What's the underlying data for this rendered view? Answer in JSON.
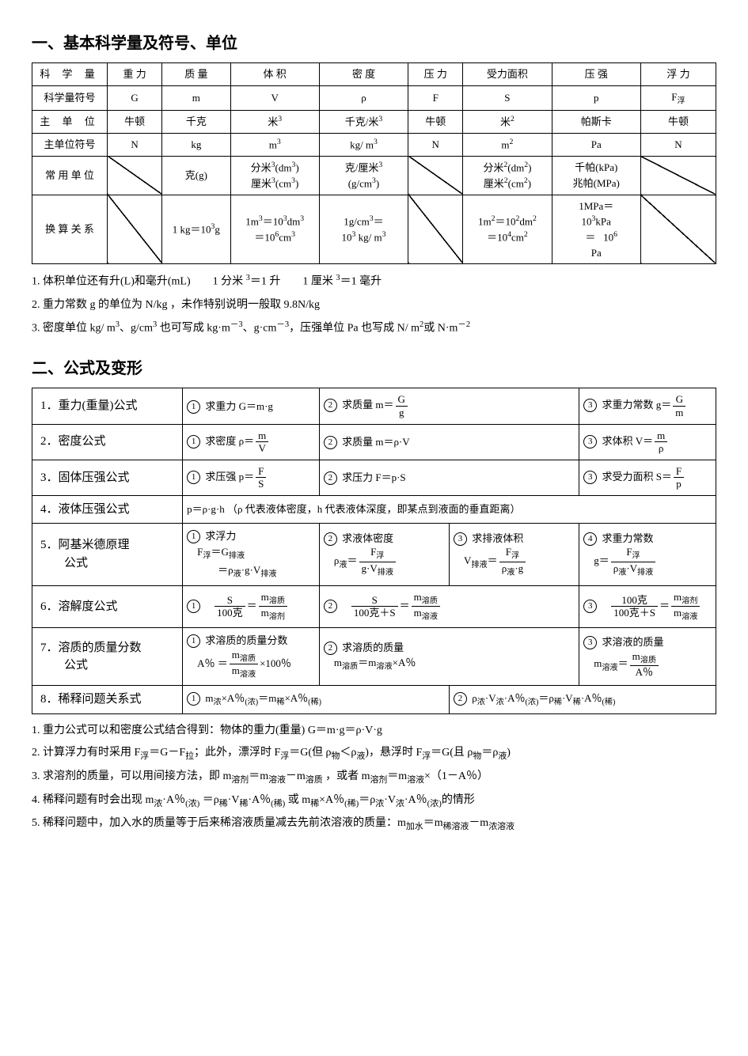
{
  "section1_title": "一、基本科学量及符号、单位",
  "table1": {
    "row_labels": [
      "科 学 量",
      "科学量符号",
      "主 单 位",
      "主单位符号",
      "常 用 单 位",
      "换 算 关 系"
    ],
    "cols": [
      {
        "h": "重 力",
        "sym": "G",
        "unit": "牛顿",
        "usym": "N",
        "common": "/",
        "conv": "/"
      },
      {
        "h": "质 量",
        "sym": "m",
        "unit": "千克",
        "usym": "kg",
        "common": "克(g)",
        "conv": "1 kg＝10<sup>3</sup>g"
      },
      {
        "h": "体 积",
        "sym": "V",
        "unit": "米<sup>3</sup>",
        "usym": "m<sup>3</sup>",
        "common": "分米<sup>3</sup>(dm<sup>3</sup>)<br>厘米<sup>3</sup>(cm<sup>3</sup>)",
        "conv": "1m<sup>3</sup>＝10<sup>3</sup>dm<sup>3</sup><br>＝10<sup>6</sup>cm<sup>3</sup>"
      },
      {
        "h": "密 度",
        "sym": "ρ",
        "unit": "千克/米<sup>3</sup>",
        "usym": "kg/ m<sup>3</sup>",
        "common": "克/厘米<sup>3</sup><br>(g/cm<sup>3</sup>)",
        "conv": "1g/cm<sup>3</sup>＝<br>10<sup>3</sup> kg/ m<sup>3</sup>"
      },
      {
        "h": "压 力",
        "sym": "F",
        "unit": "牛顿",
        "usym": "N",
        "common": "/",
        "conv": "/"
      },
      {
        "h": "受力面积",
        "sym": "S",
        "unit": "米<sup>2</sup>",
        "usym": "m<sup>2</sup>",
        "common": "分米<sup>2</sup>(dm<sup>2</sup>)<br>厘米<sup>2</sup>(cm<sup>2</sup>)",
        "conv": "1m<sup>2</sup>＝10<sup>2</sup>dm<sup>2</sup><br>＝10<sup>4</sup>cm<sup>2</sup>"
      },
      {
        "h": "压 强",
        "sym": "p",
        "unit": "帕斯卡",
        "usym": "Pa",
        "common": "千帕(kPa)<br>兆帕(MPa)",
        "conv": "1MPa＝<br>10<sup>3</sup>kPa<br>&nbsp;&nbsp;&nbsp;&nbsp;＝&nbsp;&nbsp;&nbsp;10<sup>6</sup><br>Pa"
      },
      {
        "h": "浮 力",
        "sym": "F<sub>浮</sub>",
        "unit": "牛顿",
        "usym": "N",
        "common": "/",
        "conv": "/"
      }
    ]
  },
  "notes1": [
    "1. 体积单位还有升(L)和毫升(mL)　　1 分米 <sup>3</sup>＝1 升　　1 厘米 <sup>3</sup>＝1 毫升",
    "2. 重力常数 g 的单位为 N/kg ，未作特别说明一般取 9.8N/kg",
    "3. 密度单位 kg/ m<sup>3</sup>、g/cm<sup>3</sup> 也可写成 kg·m<sup>－3</sup>、g·cm<sup>－3</sup>，压强单位 Pa 也写成 N/ m<sup>2</sup>或 N·m<sup>－2</sup>"
  ],
  "section2_title": "二、公式及变形",
  "formulas": {
    "r1": {
      "label": "1．重力(重量)公式",
      "c1": "① 求重力 G＝m·g",
      "c2": "② 求质量 m＝<span class='frac'><span class='n'>G</span><span class='d'>g</span></span>",
      "c3": "③ 求重力常数 g＝<span class='frac'><span class='n'>G</span><span class='d'>m</span></span>"
    },
    "r2": {
      "label": "2．密度公式",
      "c1": "① 求密度 ρ＝<span class='frac'><span class='n'>m</span><span class='d'>V</span></span>",
      "c2": "② 求质量 m＝ρ·V",
      "c3": "③ 求体积 V＝<span class='frac'><span class='n'>m</span><span class='d'>ρ</span></span>"
    },
    "r3": {
      "label": "3．固体压强公式",
      "c1": "① 求压强 p＝<span class='frac'><span class='n'>F</span><span class='d'>S</span></span>",
      "c2": "② 求压力 F＝p·S",
      "c3": "③ 求受力面积 S＝<span class='frac'><span class='n'>F</span><span class='d'>p</span></span>"
    },
    "r4": {
      "label": "4．液体压强公式",
      "body": "p＝ρ·g·h （ρ 代表液体密度，h 代表液体深度，即某点到液面的垂直距离）"
    },
    "r5": {
      "label": "5．阿基米德原理<br>　　公式",
      "c1": "① 求浮力<br>　F<sub>浮</sub>＝G<sub>排液</sub><br>　　　＝ρ<sub>液</sub>·g·V<sub>排液</sub>",
      "c2": "② 求液体密度<br>　ρ<sub>液</sub>＝<span class='frac'><span class='n'>F<sub>浮</sub></span><span class='d'>g·V<sub>排液</sub></span></span>",
      "c3": "③ 求排液体积<br>　V<sub>排液</sub>＝<span class='frac'><span class='n'>F<sub>浮</sub></span><span class='d'>ρ<sub>液</sub>·g</span></span>",
      "c4": "④ 求重力常数<br>　g＝<span class='frac'><span class='n'>F<sub>浮</sub></span><span class='d'>ρ<sub>液</sub>·V<sub>排液</sub></span></span>"
    },
    "r6": {
      "label": "6．溶解度公式",
      "c1": "①　<span class='frac'><span class='n'>S</span><span class='d'>100克</span></span>＝<span class='frac'><span class='n'>m<sub>溶质</sub></span><span class='d'>m<sub>溶剂</sub></span></span>",
      "c2": "②　<span class='frac'><span class='n'>S</span><span class='d'>100克＋S</span></span>＝<span class='frac'><span class='n'>m<sub>溶质</sub></span><span class='d'>m<sub>溶液</sub></span></span>",
      "c3": "③　<span class='frac'><span class='n'>100克</span><span class='d'>100克＋S</span></span>＝<span class='frac'><span class='n'>m<sub>溶剂</sub></span><span class='d'>m<sub>溶液</sub></span></span>"
    },
    "r7": {
      "label": "7．溶质的质量分数<br>　　公式",
      "c1": "① 求溶质的质量分数<br>　A％ ＝<span class='frac'><span class='n'>m<sub>溶质</sub></span><span class='d'>m<sub>溶液</sub></span></span>×100％",
      "c2": "② 求溶质的质量<br>　m<sub>溶质</sub>＝m<sub>溶液</sub>×A％",
      "c3": "③ 求溶液的质量<br>　m<sub>溶液</sub>＝<span class='frac'><span class='n'>m<sub>溶质</sub></span><span class='d'>A％</span></span>"
    },
    "r8": {
      "label": "8．稀释问题关系式",
      "c1": "① m<sub>浓</sub>×A％<sub>(浓)</sub>＝m<sub>稀</sub>×A％<sub>(稀)</sub>",
      "c2": "② ρ<sub>浓</sub>·V<sub>浓</sub>·A％<sub>(浓)</sub>＝ρ<sub>稀</sub>·V<sub>稀</sub>·A％<sub>(稀)</sub>"
    }
  },
  "notes2": [
    "1. 重力公式可以和密度公式结合得到：物体的重力(重量) G＝m·g＝ρ·V·g",
    "2. 计算浮力有时采用 F<sub>浮</sub>＝G－F<sub>拉</sub>；此外，漂浮时 F<sub>浮</sub>＝G(但 ρ<sub>物</sub>＜ρ<sub>液</sub>)，悬浮时 F<sub>浮</sub>＝G(且 ρ<sub>物</sub>＝ρ<sub>液</sub>)",
    "3. 求溶剂的质量，可以用间接方法，即 m<sub>溶剂</sub>＝m<sub>溶液</sub>－m<sub>溶质</sub> ，或者 m<sub>溶剂</sub>＝m<sub>溶液</sub>×（1－A％）",
    "4. 稀释问题有时会出现 m<sub>浓</sub>·A％<sub>(浓)</sub> ＝ρ<sub>稀</sub>·V<sub>稀</sub>·A％<sub>(稀)</sub>  或  m<sub>稀</sub>×A％<sub>(稀)</sub>＝ρ<sub>浓</sub>·V<sub>浓</sub>·A％<sub>(浓)</sub>的情形",
    "5. 稀释问题中，加入水的质量等于后来稀溶液质量减去先前浓溶液的质量：m<sub>加水</sub>＝m<sub>稀溶液</sub>－m<sub>浓溶液</sub>"
  ]
}
